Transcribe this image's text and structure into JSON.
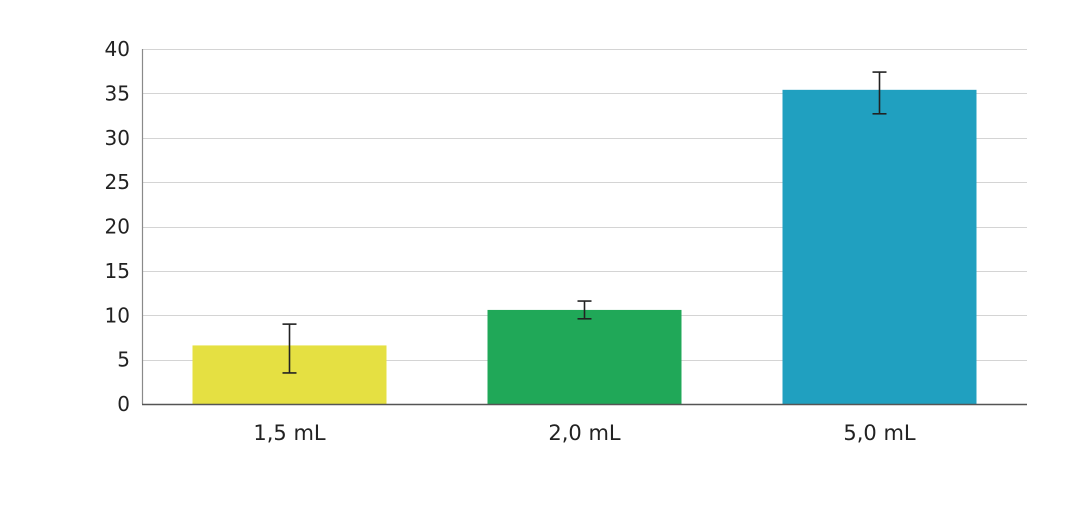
{
  "chart_data": {
    "type": "bar",
    "title": "",
    "xlabel": "",
    "ylabel": "",
    "categories": [
      "1,5 mL",
      "2,0 mL",
      "5,0 mL"
    ],
    "values": [
      6.6,
      10.6,
      35.4
    ],
    "error_low": [
      3.5,
      9.6,
      32.7
    ],
    "error_high": [
      9.0,
      11.6,
      37.4
    ],
    "colors": [
      "#e5e042",
      "#20a858",
      "#20a0c0"
    ],
    "ylim": [
      0,
      40
    ],
    "yticks": [
      "0",
      "5",
      "10",
      "15",
      "20",
      "25",
      "30",
      "35",
      "40"
    ],
    "grid": true,
    "legend": "none"
  }
}
